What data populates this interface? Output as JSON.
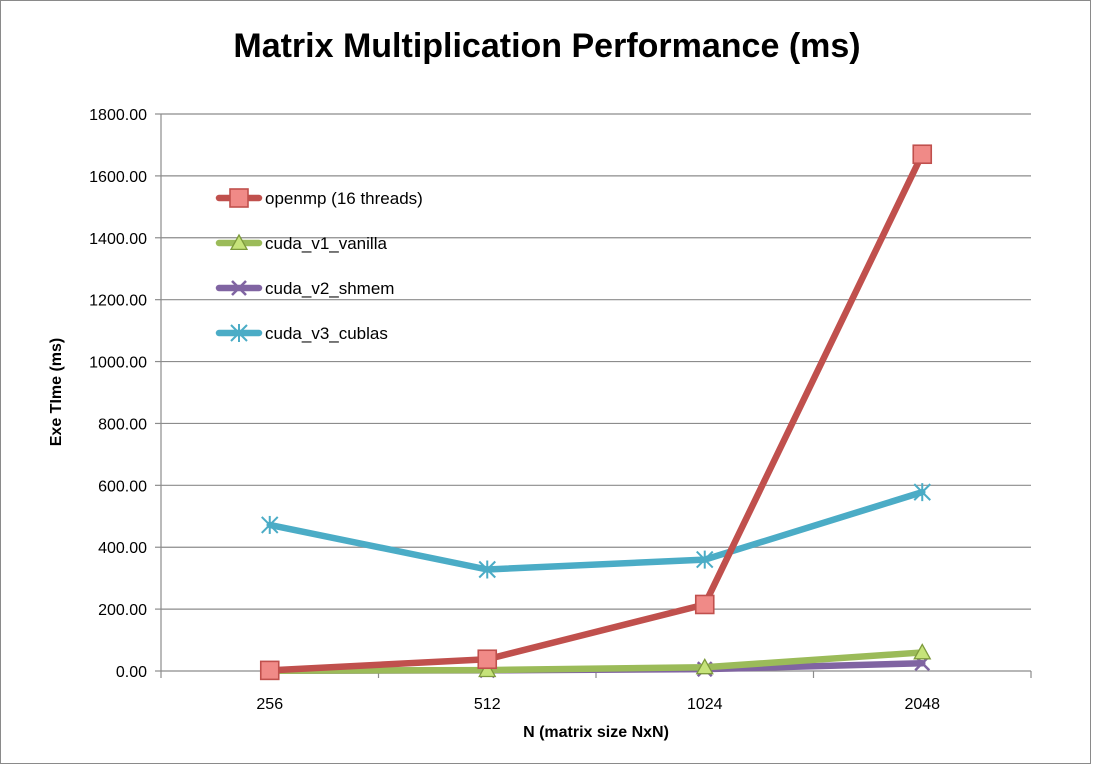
{
  "chart_data": {
    "type": "line",
    "title": "Matrix Multiplication Performance (ms)",
    "xlabel": "N (matrix size NxN)",
    "ylabel": "Exe TIme (ms)",
    "categories": [
      "256",
      "512",
      "1024",
      "2048"
    ],
    "ylim": [
      0,
      1800
    ],
    "yticks": [
      0,
      200,
      400,
      600,
      800,
      1000,
      1200,
      1400,
      1600,
      1800
    ],
    "ytick_labels": [
      "0.00",
      "200.00",
      "400.00",
      "600.00",
      "800.00",
      "1000.00",
      "1200.00",
      "1400.00",
      "1600.00",
      "1800.00"
    ],
    "grid": true,
    "legend_position": "top-left",
    "series": [
      {
        "name": "openmp (16 threads)",
        "values": [
          2,
          38,
          215,
          1670
        ],
        "color": "#C0504D",
        "marker": "square",
        "marker_fill": "#F08A87"
      },
      {
        "name": "cuda_v1_vanilla",
        "values": [
          1,
          3,
          12,
          60
        ],
        "color": "#9BBB59",
        "marker": "triangle",
        "marker_fill": "#C6E37A"
      },
      {
        "name": "cuda_v2_shmem",
        "values": [
          1,
          2,
          6,
          25
        ],
        "color": "#8064A2",
        "marker": "x",
        "marker_fill": "#8064A2"
      },
      {
        "name": "cuda_v3_cublas",
        "values": [
          472,
          328,
          360,
          578
        ],
        "color": "#4BACC6",
        "marker": "star",
        "marker_fill": "#4BACC6"
      }
    ]
  }
}
